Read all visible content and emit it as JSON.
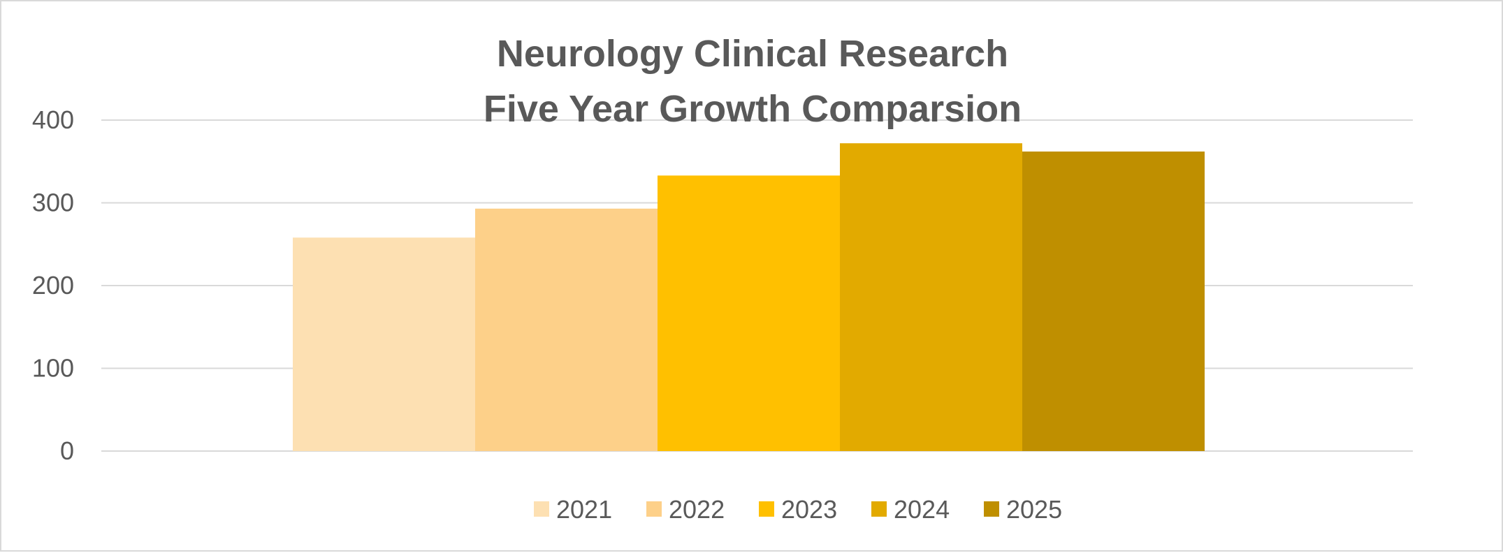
{
  "chart_data": {
    "type": "bar",
    "title_lines": [
      "Neurology Clinical Research",
      "Five Year Growth Comparsion"
    ],
    "xlabel": "",
    "ylabel": "",
    "ylim": [
      0,
      400
    ],
    "yticks": [
      0,
      100,
      200,
      300,
      400
    ],
    "grid": true,
    "legend_position": "bottom",
    "series": [
      {
        "name": "2021",
        "values": [
          258
        ],
        "color": "#FDE0B2"
      },
      {
        "name": "2022",
        "values": [
          293
        ],
        "color": "#FDD089"
      },
      {
        "name": "2023",
        "values": [
          333
        ],
        "color": "#FFC000"
      },
      {
        "name": "2024",
        "values": [
          372
        ],
        "color": "#E2AA00"
      },
      {
        "name": "2025",
        "values": [
          362
        ],
        "color": "#BF8F00"
      }
    ]
  }
}
